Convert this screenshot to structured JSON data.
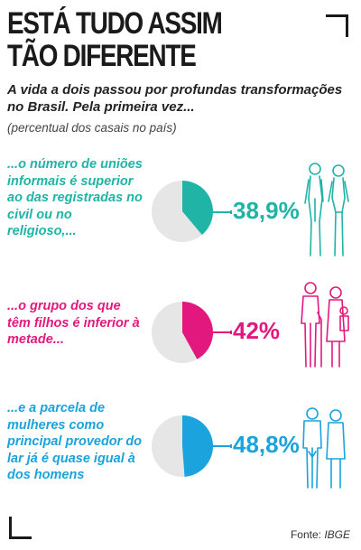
{
  "header": {
    "title_line1": "ESTÁ TUDO ASSIM",
    "title_line2": "TÃO DIFERENTE",
    "subtitle": "A vida a dois passou por profundas transformações no Brasil. Pela primeira vez...",
    "note": "(percentual dos casais no país)"
  },
  "panels": [
    {
      "text": "...o número de uniões informais é superior ao das registradas no civil ou no religioso,...",
      "value_label": "38,9%",
      "color": "#1fb4a6",
      "icon": "standing-couple-icon"
    },
    {
      "text": "...o grupo dos que têm filhos é inferior à metade...",
      "value_label": "42%",
      "color": "#e2187f",
      "icon": "family-icon"
    },
    {
      "text": "...e a parcela de mulheres como principal provedor do lar já é quase igual à dos homens",
      "value_label": "48,8%",
      "color": "#1aa3dc",
      "icon": "couple-icon"
    }
  ],
  "chart_data": [
    {
      "type": "pie",
      "categories": [
        "uniões informais",
        "outros"
      ],
      "values": [
        38.9,
        61.1
      ]
    },
    {
      "type": "pie",
      "categories": [
        "casais com filhos",
        "outros"
      ],
      "values": [
        42,
        58
      ]
    },
    {
      "type": "pie",
      "categories": [
        "mulheres como principal provedor",
        "outros"
      ],
      "values": [
        48.8,
        51.2
      ]
    }
  ],
  "pie_rest_color": "#e6e6e6",
  "footer": {
    "source_prefix": "Fonte:",
    "source_name": "IBGE"
  }
}
